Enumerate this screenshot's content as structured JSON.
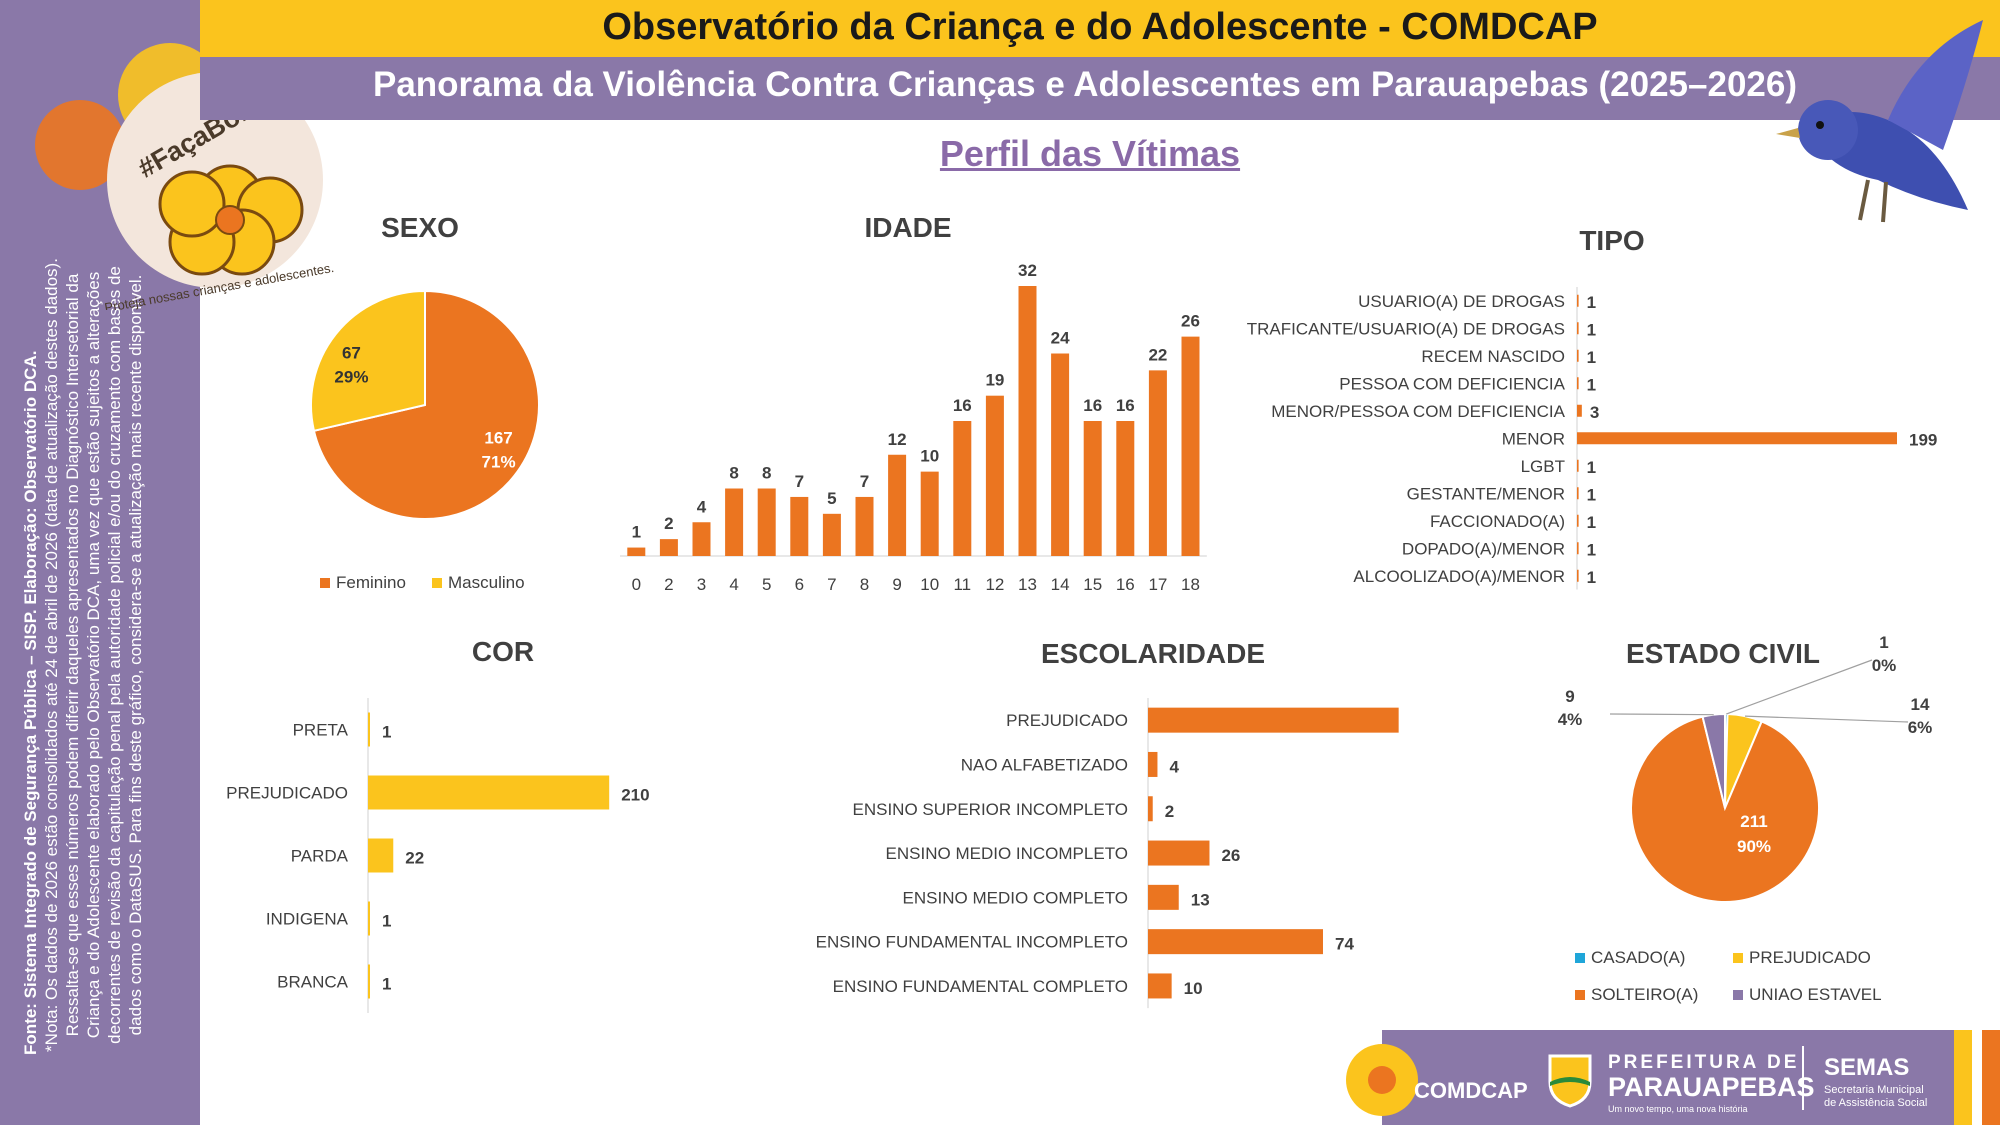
{
  "header": {
    "title": "Observatório da Criança e do Adolescente - COMDCAP",
    "subtitle": "Panorama da Violência Contra Crianças e Adolescentes em Parauapebas (2025–2026)",
    "section": "Perfil das Vítimas"
  },
  "sidebar": {
    "source": "Fonte: Sistema Integrado de Segurança Pública – SISP. Elaboração: Observatório DCA.",
    "note": "*Nota: Os dados de 2026 estão consolidados até 24 de abril de 2026 (data de atualização destes dados). Ressalta-se que esses números podem diferir daqueles apresentados no Diagnóstico Intersetorial da Criança e do Adolescente elaborado pelo Observatório DCA, uma vez que estão sujeitos a alterações decorrentes de revisão da capitulação penal pela autoridade policial e/ou do cruzamento com bases de dados como o DataSUS. Para fins deste gráfico, considera-se a atualização mais recente disponível."
  },
  "badge": {
    "hashtag": "#FaçaBonito",
    "slogan": "Proteja nossas crianças e adolescentes."
  },
  "colors": {
    "orange": "#eb7520",
    "yellow": "#fbc41d",
    "purple": "#8a78a8",
    "blue": "#1fa6d9"
  },
  "footer": {
    "comdcap": "COMDCAP",
    "prefeitura_line1": "PREFEITURA DE",
    "prefeitura_line2": "PARAUAPEBAS",
    "prefeitura_tag": "Um novo tempo, uma nova história",
    "semas": "SEMAS",
    "semas_line1": "Secretaria Municipal",
    "semas_line2": "de Assistência Social"
  },
  "chart_data": [
    {
      "id": "sexo",
      "type": "pie",
      "title": "SEXO",
      "categories": [
        "Feminino",
        "Masculino"
      ],
      "values": [
        167,
        67
      ],
      "percents": [
        "71%",
        "29%"
      ],
      "colors": [
        "#eb7520",
        "#fbc41d"
      ],
      "legend": "bottom"
    },
    {
      "id": "idade",
      "type": "bar",
      "title": "IDADE",
      "categories": [
        "0",
        "2",
        "3",
        "4",
        "5",
        "6",
        "7",
        "8",
        "9",
        "10",
        "11",
        "12",
        "13",
        "14",
        "15",
        "16",
        "17",
        "18"
      ],
      "values": [
        1,
        2,
        4,
        8,
        8,
        7,
        5,
        7,
        12,
        10,
        16,
        19,
        32,
        24,
        16,
        16,
        22,
        26
      ],
      "color": "#eb7520"
    },
    {
      "id": "tipo",
      "type": "bar",
      "orientation": "horizontal",
      "title": "TIPO",
      "categories": [
        "USUARIO(A) DE DROGAS",
        "TRAFICANTE/USUARIO(A) DE DROGAS",
        "RECEM NASCIDO",
        "PESSOA COM DEFICIENCIA",
        "MENOR/PESSOA COM DEFICIENCIA",
        "MENOR",
        "LGBT",
        "GESTANTE/MENOR",
        "FACCIONADO(A)",
        "DOPADO(A)/MENOR",
        "ALCOOLIZADO(A)/MENOR"
      ],
      "values": [
        1,
        1,
        1,
        1,
        3,
        199,
        1,
        1,
        1,
        1,
        1
      ],
      "color": "#eb7520"
    },
    {
      "id": "cor",
      "type": "bar",
      "orientation": "horizontal",
      "title": "COR",
      "categories": [
        "PRETA",
        "PREJUDICADO",
        "PARDA",
        "INDIGENA",
        "BRANCA"
      ],
      "values": [
        1,
        210,
        22,
        1,
        1
      ],
      "color": "#fbc41d"
    },
    {
      "id": "escolaridade",
      "type": "bar",
      "orientation": "horizontal",
      "title": "ESCOLARIDADE",
      "categories": [
        "PREJUDICADO",
        "NAO ALFABETIZADO",
        "ENSINO SUPERIOR INCOMPLETO",
        "ENSINO MEDIO INCOMPLETO",
        "ENSINO MEDIO COMPLETO",
        "ENSINO FUNDAMENTAL INCOMPLETO",
        "ENSINO FUNDAMENTAL COMPLETO"
      ],
      "values": [
        106,
        4,
        2,
        26,
        13,
        74,
        10
      ],
      "color": "#eb7520"
    },
    {
      "id": "estado_civil",
      "type": "pie",
      "title": "ESTADO CIVIL",
      "categories": [
        "CASADO(A)",
        "PREJUDICADO",
        "SOLTEIRO(A)",
        "UNIAO ESTAVEL"
      ],
      "values": [
        1,
        14,
        211,
        9
      ],
      "percents": [
        "0%",
        "6%",
        "90%",
        "4%"
      ],
      "colors": [
        "#1fa6d9",
        "#fbc41d",
        "#eb7520",
        "#8a78a8"
      ],
      "legend": "bottom"
    }
  ]
}
